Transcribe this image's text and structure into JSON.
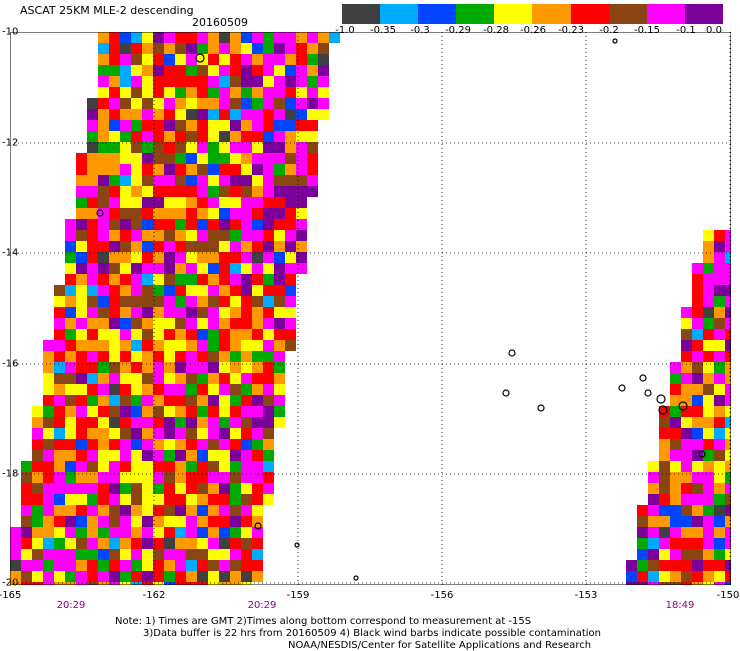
{
  "header": {
    "title": "ASCAT 25KM MLE-2 descending",
    "date": "20160509"
  },
  "colorbar": {
    "colors": [
      "#404040",
      "#00aaff",
      "#0044ff",
      "#00aa00",
      "#ffff00",
      "#ff9900",
      "#ff0000",
      "#8b4513",
      "#ff00ff",
      "#7a0099"
    ],
    "labels": [
      "-1.0",
      "-0.35",
      "-0.3",
      "-0.29",
      "-0.28",
      "-0.26",
      "-0.23",
      "-0.2",
      "-0.15",
      "-0.1",
      "0.0"
    ]
  },
  "axes": {
    "y_ticks": [
      "-10",
      "-12",
      "-14",
      "-16",
      "-18",
      "-20"
    ],
    "x_ticks": [
      "-165",
      "-162",
      "-159",
      "-156",
      "-153",
      "-150"
    ]
  },
  "times": [
    "20:29",
    "20:29",
    "18:49"
  ],
  "notes": {
    "line1": "Note: 1) Times are GMT 2)Times along bottom correspond to measurement at -15S",
    "line2": "3)Data buffer is 22 hrs from 20160509 4) Black wind barbs indicate possible contamination",
    "line3": "NOAA/NESDIS/Center for Satellite Applications and Research"
  }
}
